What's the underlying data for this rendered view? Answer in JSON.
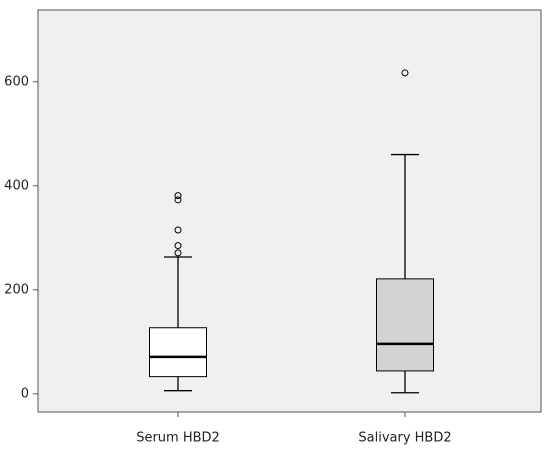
{
  "chart_data": {
    "type": "box",
    "categories": [
      "Serum HBD2",
      "Salivary HBD2"
    ],
    "boxes": [
      {
        "min": 6,
        "q1": 33,
        "median": 71,
        "q3": 127,
        "max": 263,
        "outliers": [
          271,
          285,
          315,
          373,
          381
        ],
        "color": "#ffffff"
      },
      {
        "min": 2,
        "q1": 44,
        "median": 96,
        "q3": 221,
        "max": 460,
        "outliers": [
          617
        ],
        "color": "#d3d3d3"
      }
    ],
    "ylim": [
      -35,
      738
    ],
    "yticks": [
      0,
      200,
      400,
      600
    ]
  }
}
